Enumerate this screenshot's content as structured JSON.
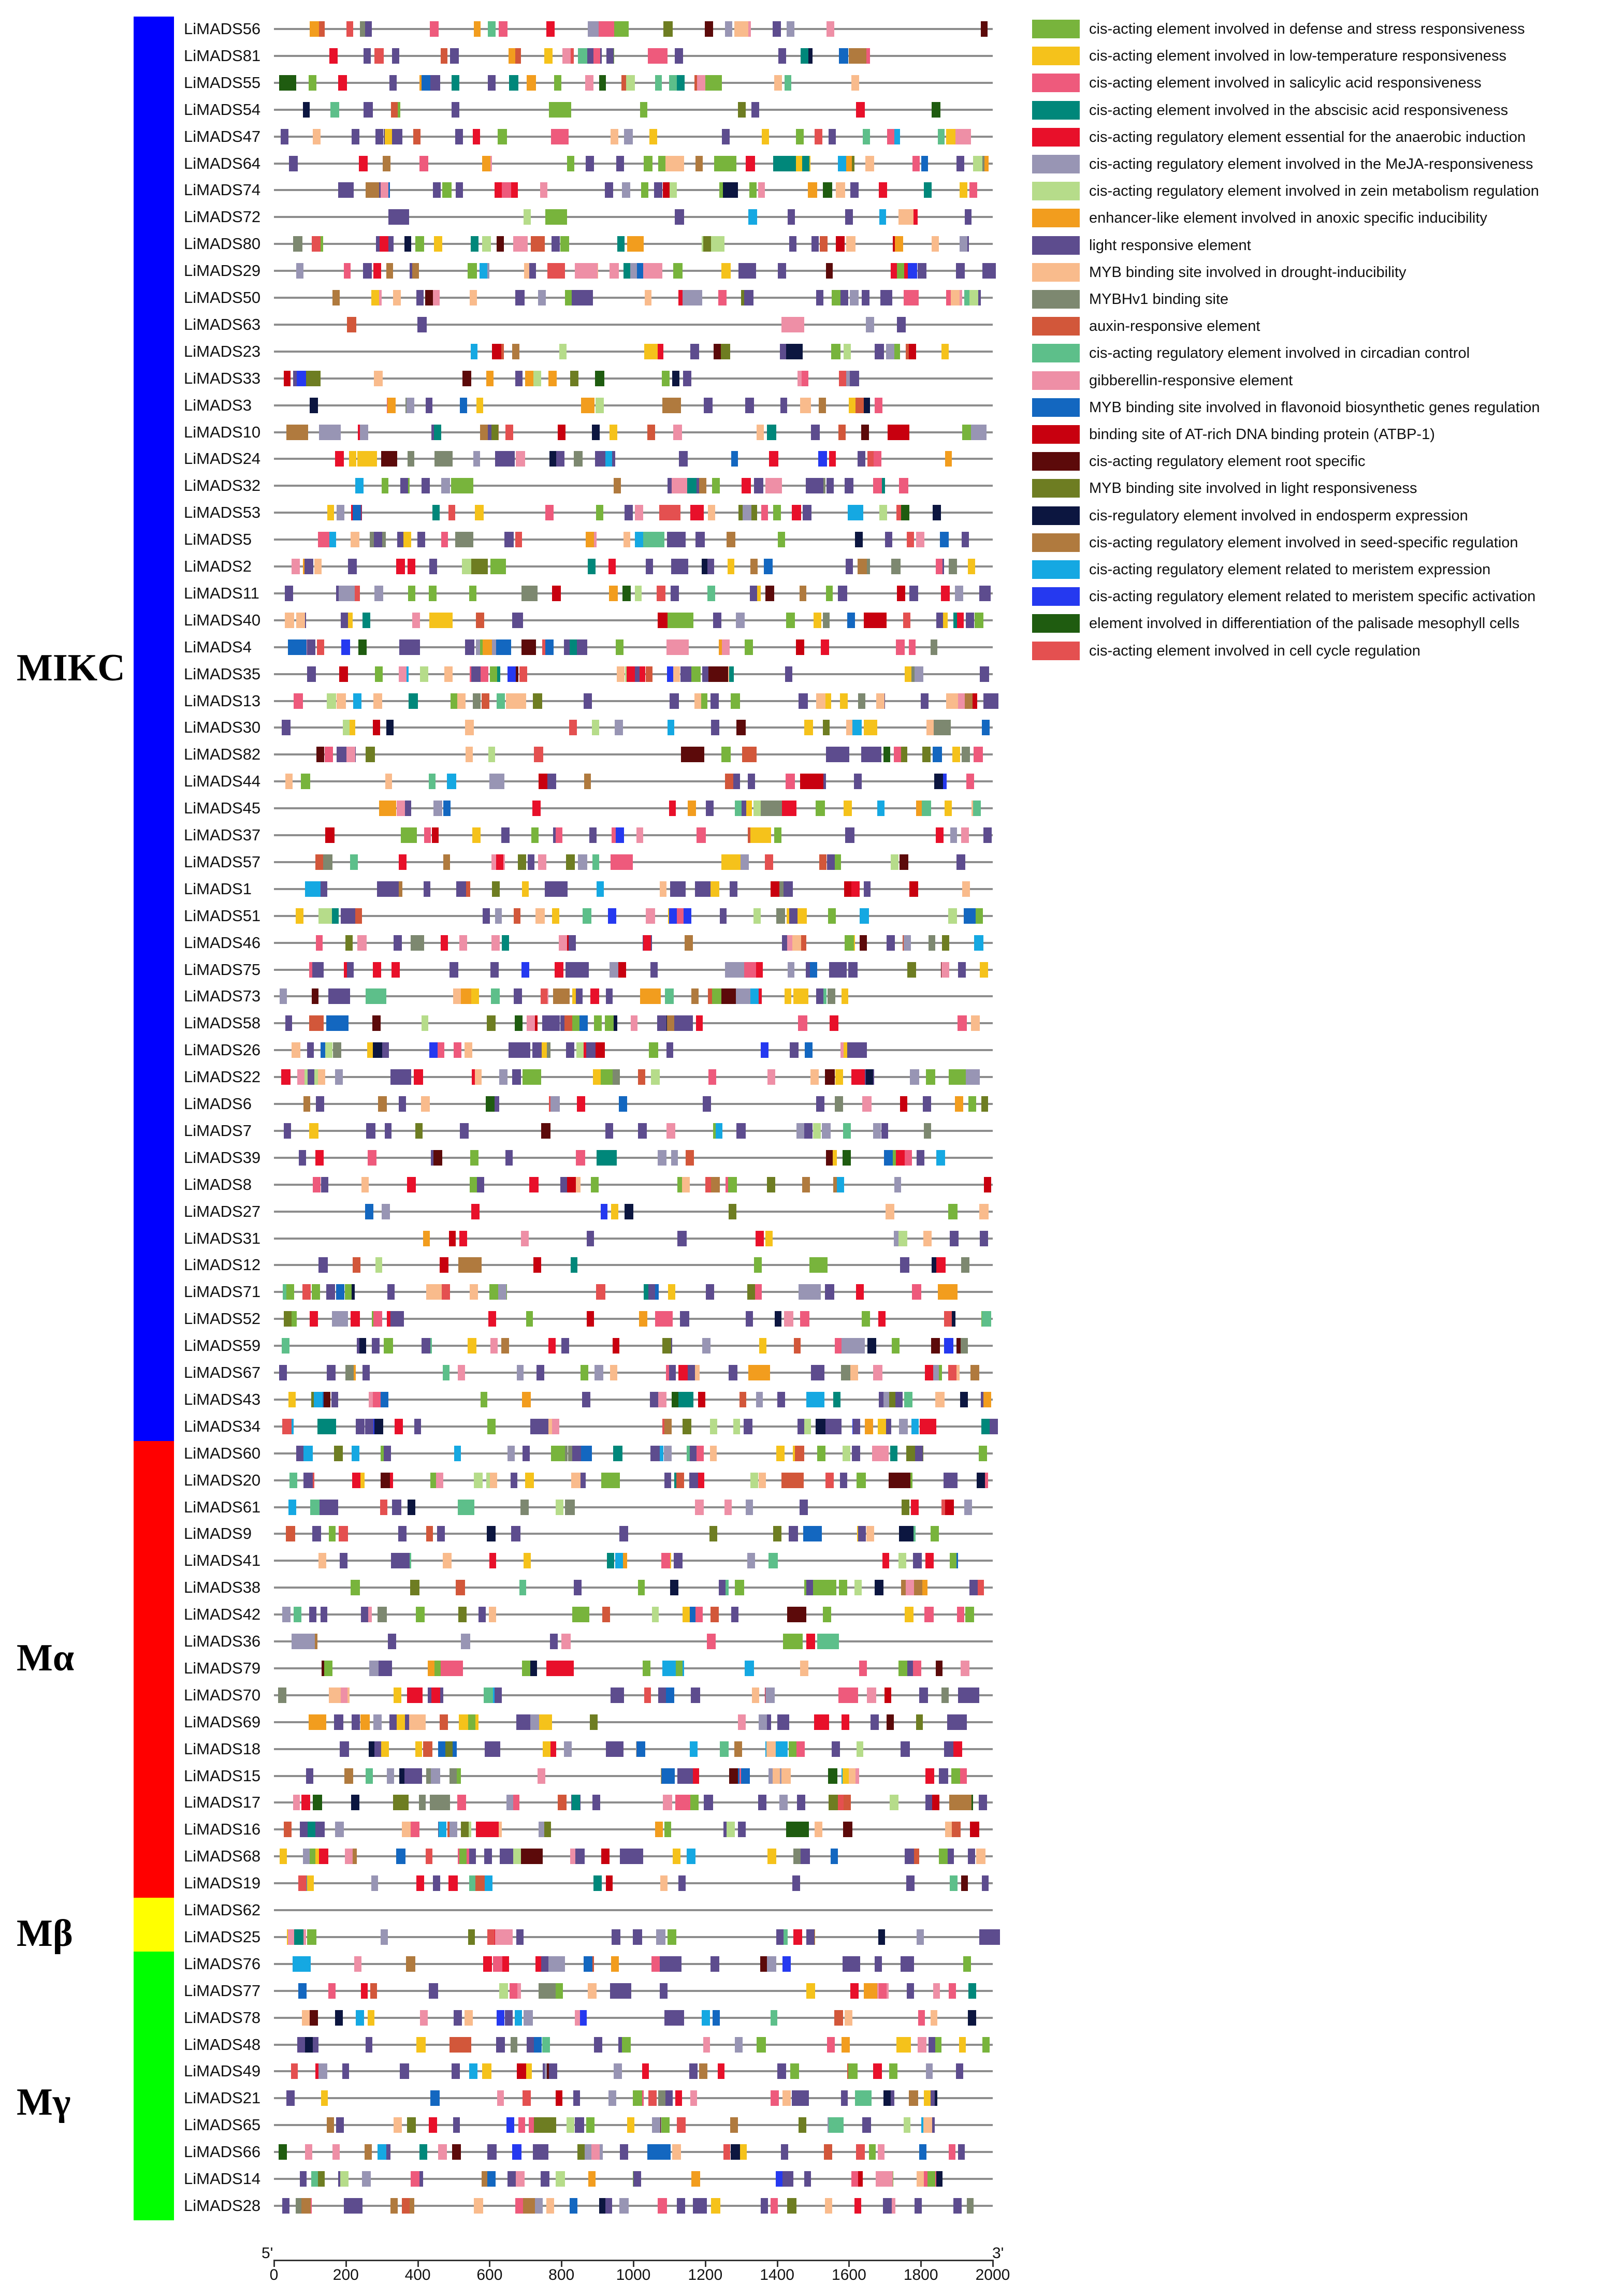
{
  "figure": {
    "axis": {
      "min": 0,
      "max": 2000,
      "ticks": [
        "0",
        "200",
        "400",
        "600",
        "800",
        "1000",
        "1200",
        "1400",
        "1600",
        "1800",
        "2000"
      ],
      "left_end": "5'",
      "right_end": "3'"
    },
    "groups": [
      {
        "name": "MIKC",
        "color": "#0000ff",
        "count": 53
      },
      {
        "name": "Mα",
        "color": "#ff0000",
        "count": 17
      },
      {
        "name": "Mβ",
        "color": "#ffff00",
        "count": 2
      },
      {
        "name": "Mγ",
        "color": "#00ff00",
        "count": 10
      }
    ],
    "genes": [
      "LiMADS56",
      "LiMADS81",
      "LiMADS55",
      "LiMADS54",
      "LiMADS47",
      "LiMADS64",
      "LiMADS74",
      "LiMADS72",
      "LiMADS80",
      "LiMADS29",
      "LiMADS50",
      "LiMADS63",
      "LiMADS23",
      "LiMADS33",
      "LiMADS3",
      "LiMADS10",
      "LiMADS24",
      "LiMADS32",
      "LiMADS53",
      "LiMADS5",
      "LiMADS2",
      "LiMADS11",
      "LiMADS40",
      "LiMADS4",
      "LiMADS35",
      "LiMADS13",
      "LiMADS30",
      "LiMADS82",
      "LiMADS44",
      "LiMADS45",
      "LiMADS37",
      "LiMADS57",
      "LiMADS1",
      "LiMADS51",
      "LiMADS46",
      "LiMADS75",
      "LiMADS73",
      "LiMADS58",
      "LiMADS26",
      "LiMADS22",
      "LiMADS6",
      "LiMADS7",
      "LiMADS39",
      "LiMADS8",
      "LiMADS27",
      "LiMADS31",
      "LiMADS12",
      "LiMADS71",
      "LiMADS52",
      "LiMADS59",
      "LiMADS67",
      "LiMADS43",
      "LiMADS34",
      "LiMADS60",
      "LiMADS20",
      "LiMADS61",
      "LiMADS9",
      "LiMADS41",
      "LiMADS38",
      "LiMADS42",
      "LiMADS36",
      "LiMADS79",
      "LiMADS70",
      "LiMADS69",
      "LiMADS18",
      "LiMADS15",
      "LiMADS17",
      "LiMADS16",
      "LiMADS68",
      "LiMADS19",
      "LiMADS62",
      "LiMADS25",
      "LiMADS76",
      "LiMADS77",
      "LiMADS78",
      "LiMADS48",
      "LiMADS49",
      "LiMADS21",
      "LiMADS65",
      "LiMADS66",
      "LiMADS14",
      "LiMADS28"
    ],
    "legend": [
      {
        "label": "cis-acting element involved in defense and stress responsiveness",
        "color": "#78b43c"
      },
      {
        "label": "cis-acting element involved in low-temperature responsiveness",
        "color": "#f5c21b"
      },
      {
        "label": "cis-acting element involved in salicylic acid responsiveness",
        "color": "#ee5a7c"
      },
      {
        "label": "cis-acting element involved in the abscisic acid responsiveness",
        "color": "#00877a"
      },
      {
        "label": "cis-acting regulatory element essential for the anaerobic induction",
        "color": "#e8102a"
      },
      {
        "label": "cis-acting regulatory element involved in the MeJA-responsiveness",
        "color": "#9895b4"
      },
      {
        "label": "cis-acting regulatory element involved in zein metabolism regulation",
        "color": "#b6dc8a"
      },
      {
        "label": "enhancer-like element involved in anoxic specific inducibility",
        "color": "#f29d1e"
      },
      {
        "label": "light responsive element",
        "color": "#5d4c8e"
      },
      {
        "label": "MYB binding site involved in drought-inducibility",
        "color": "#f9bb8c"
      },
      {
        "label": "MYBHv1 binding site",
        "color": "#7d8870"
      },
      {
        "label": "auxin-responsive element",
        "color": "#d2573a"
      },
      {
        "label": "cis-acting regulatory element involved in circadian control",
        "color": "#5dbf8a"
      },
      {
        "label": "gibberellin-responsive element",
        "color": "#ee8fa6"
      },
      {
        "label": "MYB binding site involved in flavonoid biosynthetic genes regulation",
        "color": "#1367c0"
      },
      {
        "label": "binding site of AT-rich DNA binding protein (ATBP-1)",
        "color": "#c8000f"
      },
      {
        "label": "cis-acting regulatory element root specific",
        "color": "#5c0a0a"
      },
      {
        "label": "MYB binding site involved in light responsiveness",
        "color": "#6e7d22"
      },
      {
        "label": "cis-regulatory element involved in endosperm expression",
        "color": "#0c1640"
      },
      {
        "label": "cis-acting regulatory element involved in seed-specific regulation",
        "color": "#b07a3e"
      },
      {
        "label": "cis-acting regulatory element related to meristem expression",
        "color": "#15a8e2"
      },
      {
        "label": "cis-acting regulatory element related to meristem specific activation",
        "color": "#2539f0"
      },
      {
        "label": "element involved in differentiation of the palisade mesophyll cells",
        "color": "#1f5c10"
      },
      {
        "label": "cis-acting element involved in cell cycle regulation",
        "color": "#e45050"
      }
    ]
  }
}
